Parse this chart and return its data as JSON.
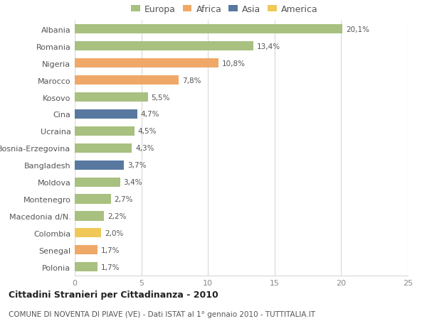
{
  "categories": [
    "Albania",
    "Romania",
    "Nigeria",
    "Marocco",
    "Kosovo",
    "Cina",
    "Ucraina",
    "Bosnia-Erzegovina",
    "Bangladesh",
    "Moldova",
    "Montenegro",
    "Macedonia d/N.",
    "Colombia",
    "Senegal",
    "Polonia"
  ],
  "values": [
    20.1,
    13.4,
    10.8,
    7.8,
    5.5,
    4.7,
    4.5,
    4.3,
    3.7,
    3.4,
    2.7,
    2.2,
    2.0,
    1.7,
    1.7
  ],
  "labels": [
    "20,1%",
    "13,4%",
    "10,8%",
    "7,8%",
    "5,5%",
    "4,7%",
    "4,5%",
    "4,3%",
    "3,7%",
    "3,4%",
    "2,7%",
    "2,2%",
    "2,0%",
    "1,7%",
    "1,7%"
  ],
  "continents": [
    "Europa",
    "Europa",
    "Africa",
    "Africa",
    "Europa",
    "Asia",
    "Europa",
    "Europa",
    "Asia",
    "Europa",
    "Europa",
    "Europa",
    "America",
    "Africa",
    "Europa"
  ],
  "colors": {
    "Europa": "#a8c080",
    "Africa": "#f0a868",
    "Asia": "#5878a0",
    "America": "#f0c858"
  },
  "xlim": [
    0,
    25
  ],
  "xticks": [
    0,
    5,
    10,
    15,
    20,
    25
  ],
  "title": "Cittadini Stranieri per Cittadinanza - 2010",
  "subtitle": "COMUNE DI NOVENTA DI PIAVE (VE) - Dati ISTAT al 1° gennaio 2010 - TUTTITALIA.IT",
  "background_color": "#ffffff",
  "grid_color": "#d8d8d8",
  "bar_height": 0.55,
  "legend_order": [
    "Europa",
    "Africa",
    "Asia",
    "America"
  ]
}
